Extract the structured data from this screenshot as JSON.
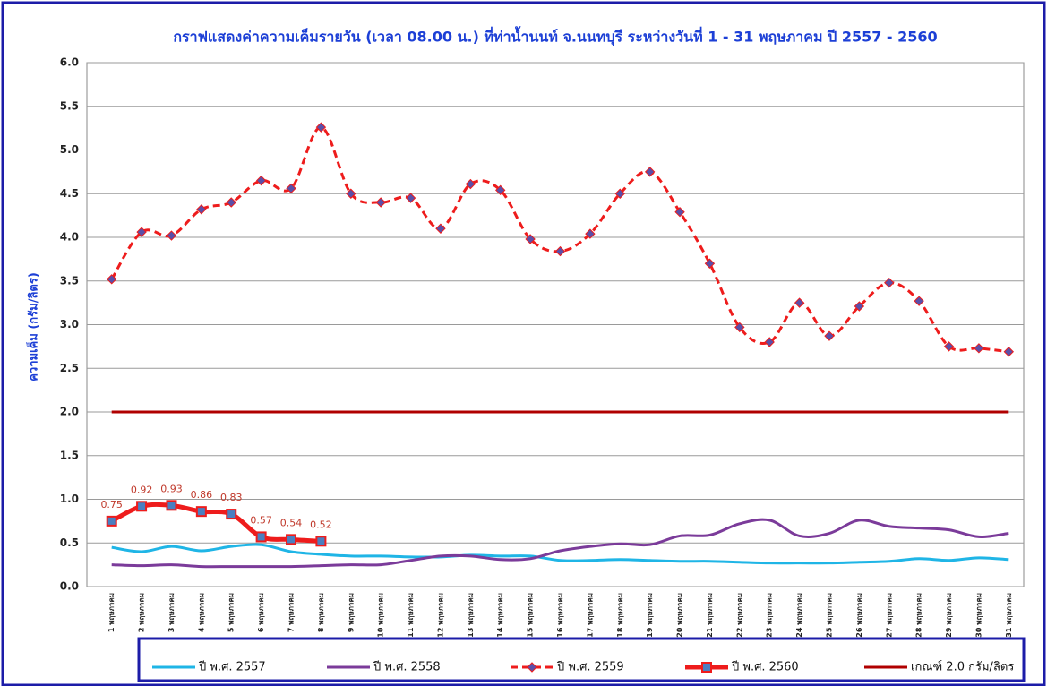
{
  "chart_data": {
    "type": "line",
    "title": "กราฟแสดงค่าความเค็มรายวัน (เวลา 08.00 น.) ที่ท่าน้ำนนท์ จ.นนทบุรี ระหว่างวันที่ 1 - 31 พฤษภาคม ปี 2557 - 2560",
    "y_label": "ความเค็ม (กรัม/ลิตร)",
    "categories": [
      "1 พฤษภาคม",
      "2 พฤษภาคม",
      "3 พฤษภาคม",
      "4 พฤษภาคม",
      "5 พฤษภาคม",
      "6 พฤษภาคม",
      "7 พฤษภาคม",
      "8 พฤษภาคม",
      "9 พฤษภาคม",
      "10 พฤษภาคม",
      "11 พฤษภาคม",
      "12 พฤษภาคม",
      "13 พฤษภาคม",
      "14 พฤษภาคม",
      "15 พฤษภาคม",
      "16 พฤษภาคม",
      "17 พฤษภาคม",
      "18 พฤษภาคม",
      "19 พฤษภาคม",
      "20 พฤษภาคม",
      "21 พฤษภาคม",
      "22 พฤษภาคม",
      "23 พฤษภาคม",
      "24 พฤษภาคม",
      "25 พฤษภาคม",
      "26 พฤษภาคม",
      "27 พฤษภาคม",
      "28 พฤษภาคม",
      "29 พฤษภาคม",
      "30 พฤษภาคม",
      "31 พฤษภาคม"
    ],
    "ylim": [
      0,
      6
    ],
    "yticks": [
      {
        "value": 0,
        "label": "0.0"
      },
      {
        "value": 0.5,
        "label": "0.5"
      },
      {
        "value": 1,
        "label": "1.0"
      },
      {
        "value": 1.5,
        "label": "1.5"
      },
      {
        "value": 2,
        "label": "2.0"
      },
      {
        "value": 2.5,
        "label": "2.5"
      },
      {
        "value": 3,
        "label": "3.0"
      },
      {
        "value": 3.5,
        "label": "3.5"
      },
      {
        "value": 4,
        "label": "4.0"
      },
      {
        "value": 4.5,
        "label": "4.5"
      },
      {
        "value": 5,
        "label": "5.0"
      },
      {
        "value": 5.5,
        "label": "5.5"
      },
      {
        "value": 6,
        "label": "6.0"
      }
    ],
    "grid": true,
    "legend": "bottom",
    "series": [
      {
        "name": "ปี พ.ศ. 2557",
        "color": "#1fb5e6",
        "width": 3,
        "dashed": false,
        "marker": "none",
        "values": [
          0.45,
          0.4,
          0.46,
          0.41,
          0.46,
          0.48,
          0.4,
          0.37,
          0.35,
          0.35,
          0.34,
          0.34,
          0.36,
          0.35,
          0.35,
          0.3,
          0.3,
          0.31,
          0.3,
          0.29,
          0.29,
          0.28,
          0.27,
          0.27,
          0.27,
          0.28,
          0.29,
          0.32,
          0.3,
          0.33,
          0.31
        ]
      },
      {
        "name": "ปี พ.ศ. 2558",
        "color": "#7b3b9a",
        "width": 3,
        "dashed": false,
        "marker": "none",
        "values": [
          0.25,
          0.24,
          0.25,
          0.23,
          0.23,
          0.23,
          0.23,
          0.24,
          0.25,
          0.25,
          0.3,
          0.35,
          0.35,
          0.31,
          0.32,
          0.41,
          0.46,
          0.49,
          0.48,
          0.58,
          0.59,
          0.72,
          0.76,
          0.58,
          0.61,
          0.76,
          0.69,
          0.67,
          0.65,
          0.57,
          0.61
        ]
      },
      {
        "name": "ปี พ.ศ. 2559",
        "color": "#ee1c1c",
        "width": 3,
        "dashed": true,
        "marker": "diamond",
        "marker_color": "#5a4fa8",
        "values": [
          3.52,
          4.06,
          4.02,
          4.32,
          4.4,
          4.65,
          4.56,
          5.26,
          4.5,
          4.4,
          4.45,
          4.1,
          4.61,
          4.54,
          3.98,
          3.84,
          4.04,
          4.5,
          4.75,
          4.29,
          3.7,
          2.97,
          2.8,
          3.25,
          2.87,
          3.21,
          3.48,
          3.27,
          2.75,
          2.73,
          2.69
        ]
      },
      {
        "name": "ปี พ.ศ. 2560",
        "color": "#ee1c1c",
        "width": 5,
        "dashed": false,
        "marker": "square",
        "marker_color": "#4a7fc1",
        "data_labels": true,
        "values": [
          0.75,
          0.92,
          0.93,
          0.86,
          0.83,
          0.57,
          0.54,
          0.52,
          null,
          null,
          null,
          null,
          null,
          null,
          null,
          null,
          null,
          null,
          null,
          null,
          null,
          null,
          null,
          null,
          null,
          null,
          null,
          null,
          null,
          null,
          null
        ]
      },
      {
        "name": "เกณฑ์ 2.0 กรัม/ลิตร",
        "color": "#b00000",
        "width": 3,
        "dashed": false,
        "marker": "none",
        "values": [
          2,
          2,
          2,
          2,
          2,
          2,
          2,
          2,
          2,
          2,
          2,
          2,
          2,
          2,
          2,
          2,
          2,
          2,
          2,
          2,
          2,
          2,
          2,
          2,
          2,
          2,
          2,
          2,
          2,
          2,
          2
        ]
      }
    ]
  }
}
